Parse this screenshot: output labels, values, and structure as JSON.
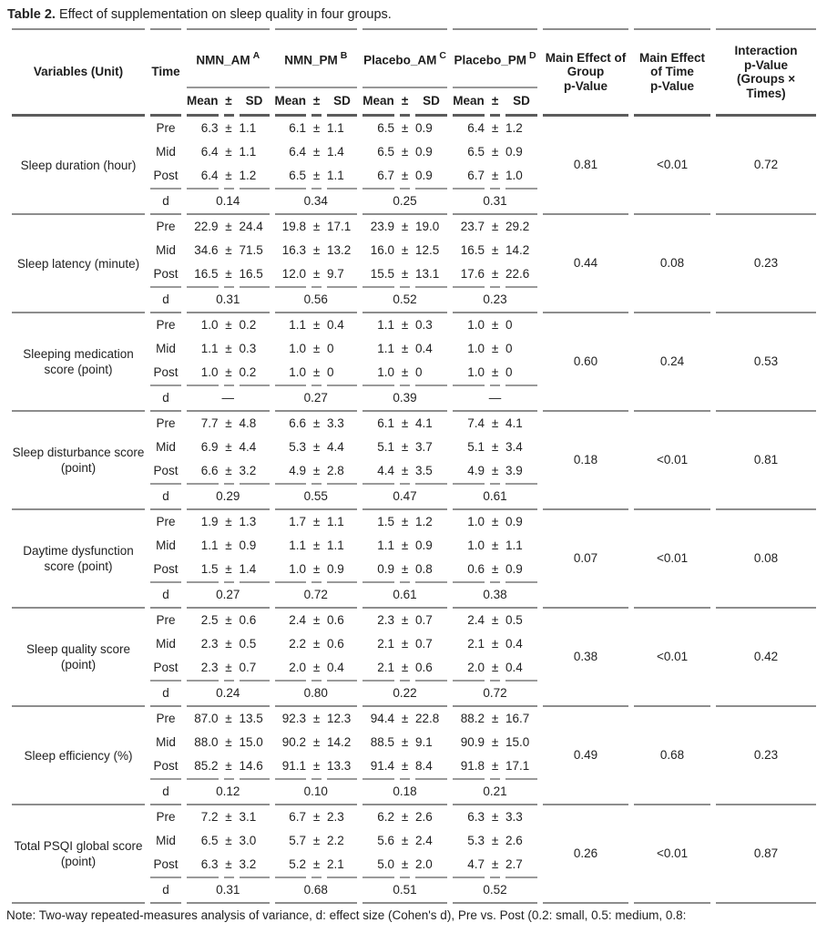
{
  "title": {
    "label": "Table 2.",
    "text": " Effect of supplementation on sleep quality in four groups."
  },
  "header": {
    "variables": "Variables (Unit)",
    "time": "Time",
    "groups": [
      {
        "name": "NMN_AM",
        "sup": "A"
      },
      {
        "name": "NMN_PM",
        "sup": "B"
      },
      {
        "name": "Placebo_AM",
        "sup": "C"
      },
      {
        "name": "Placebo_PM",
        "sup": "D"
      }
    ],
    "sub": {
      "mean": "Mean",
      "pm": "±",
      "sd": "SD"
    },
    "p_columns": [
      "Main Effect of\nGroup\np-Value",
      "Main Effect\nof Time\np-Value",
      "Interaction\np-Value\n(Groups ×\nTimes)"
    ],
    "d_label": "d"
  },
  "blocks": [
    {
      "variable": "Sleep duration (hour)",
      "rows": [
        {
          "time": "Pre",
          "cells": [
            [
              "6.3",
              "±",
              "1.1"
            ],
            [
              "6.1",
              "±",
              "1.1"
            ],
            [
              "6.5",
              "±",
              "0.9"
            ],
            [
              "6.4",
              "±",
              "1.2"
            ]
          ]
        },
        {
          "time": "Mid",
          "cells": [
            [
              "6.4",
              "±",
              "1.1"
            ],
            [
              "6.4",
              "±",
              "1.4"
            ],
            [
              "6.5",
              "±",
              "0.9"
            ],
            [
              "6.5",
              "±",
              "0.9"
            ]
          ]
        },
        {
          "time": "Post",
          "cells": [
            [
              "6.4",
              "±",
              "1.2"
            ],
            [
              "6.5",
              "±",
              "1.1"
            ],
            [
              "6.7",
              "±",
              "0.9"
            ],
            [
              "6.7",
              "±",
              "1.0"
            ]
          ]
        }
      ],
      "d": [
        "0.14",
        "0.34",
        "0.25",
        "0.31"
      ],
      "p_group": "0.81",
      "p_time": "<0.01",
      "p_interaction": "0.72"
    },
    {
      "variable": "Sleep latency (minute)",
      "rows": [
        {
          "time": "Pre",
          "cells": [
            [
              "22.9",
              "±",
              "24.4"
            ],
            [
              "19.8",
              "±",
              "17.1"
            ],
            [
              "23.9",
              "±",
              "19.0"
            ],
            [
              "23.7",
              "±",
              "29.2"
            ]
          ]
        },
        {
          "time": "Mid",
          "cells": [
            [
              "34.6",
              "±",
              "71.5"
            ],
            [
              "16.3",
              "±",
              "13.2"
            ],
            [
              "16.0",
              "±",
              "12.5"
            ],
            [
              "16.5",
              "±",
              "14.2"
            ]
          ]
        },
        {
          "time": "Post",
          "cells": [
            [
              "16.5",
              "±",
              "16.5"
            ],
            [
              "12.0",
              "±",
              "9.7"
            ],
            [
              "15.5",
              "±",
              "13.1"
            ],
            [
              "17.6",
              "±",
              "22.6"
            ]
          ]
        }
      ],
      "d": [
        "0.31",
        "0.56",
        "0.52",
        "0.23"
      ],
      "p_group": "0.44",
      "p_time": "0.08",
      "p_interaction": "0.23"
    },
    {
      "variable": "Sleeping medication score (point)",
      "rows": [
        {
          "time": "Pre",
          "cells": [
            [
              "1.0",
              "±",
              "0.2"
            ],
            [
              "1.1",
              "±",
              "0.4"
            ],
            [
              "1.1",
              "±",
              "0.3"
            ],
            [
              "1.0",
              "±",
              "0"
            ]
          ]
        },
        {
          "time": "Mid",
          "cells": [
            [
              "1.1",
              "±",
              "0.3"
            ],
            [
              "1.0",
              "±",
              "0"
            ],
            [
              "1.1",
              "±",
              "0.4"
            ],
            [
              "1.0",
              "±",
              "0"
            ]
          ]
        },
        {
          "time": "Post",
          "cells": [
            [
              "1.0",
              "±",
              "0.2"
            ],
            [
              "1.0",
              "±",
              "0"
            ],
            [
              "1.0",
              "±",
              "0"
            ],
            [
              "1.0",
              "±",
              "0"
            ]
          ]
        }
      ],
      "d": [
        "—",
        "0.27",
        "0.39",
        "—"
      ],
      "p_group": "0.60",
      "p_time": "0.24",
      "p_interaction": "0.53"
    },
    {
      "variable": "Sleep disturbance score (point)",
      "rows": [
        {
          "time": "Pre",
          "cells": [
            [
              "7.7",
              "±",
              "4.8"
            ],
            [
              "6.6",
              "±",
              "3.3"
            ],
            [
              "6.1",
              "±",
              "4.1"
            ],
            [
              "7.4",
              "±",
              "4.1"
            ]
          ]
        },
        {
          "time": "Mid",
          "cells": [
            [
              "6.9",
              "±",
              "4.4"
            ],
            [
              "5.3",
              "±",
              "4.4"
            ],
            [
              "5.1",
              "±",
              "3.7"
            ],
            [
              "5.1",
              "±",
              "3.4"
            ]
          ]
        },
        {
          "time": "Post",
          "cells": [
            [
              "6.6",
              "±",
              "3.2"
            ],
            [
              "4.9",
              "±",
              "2.8"
            ],
            [
              "4.4",
              "±",
              "3.5"
            ],
            [
              "4.9",
              "±",
              "3.9"
            ]
          ]
        }
      ],
      "d": [
        "0.29",
        "0.55",
        "0.47",
        "0.61"
      ],
      "p_group": "0.18",
      "p_time": "<0.01",
      "p_interaction": "0.81"
    },
    {
      "variable": "Daytime dysfunction score (point)",
      "rows": [
        {
          "time": "Pre",
          "cells": [
            [
              "1.9",
              "±",
              "1.3"
            ],
            [
              "1.7",
              "±",
              "1.1"
            ],
            [
              "1.5",
              "±",
              "1.2"
            ],
            [
              "1.0",
              "±",
              "0.9"
            ]
          ]
        },
        {
          "time": "Mid",
          "cells": [
            [
              "1.1",
              "±",
              "0.9"
            ],
            [
              "1.1",
              "±",
              "1.1"
            ],
            [
              "1.1",
              "±",
              "0.9"
            ],
            [
              "1.0",
              "±",
              "1.1"
            ]
          ]
        },
        {
          "time": "Post",
          "cells": [
            [
              "1.5",
              "±",
              "1.4"
            ],
            [
              "1.0",
              "±",
              "0.9"
            ],
            [
              "0.9",
              "±",
              "0.8"
            ],
            [
              "0.6",
              "±",
              "0.9"
            ]
          ]
        }
      ],
      "d": [
        "0.27",
        "0.72",
        "0.61",
        "0.38"
      ],
      "p_group": "0.07",
      "p_time": "<0.01",
      "p_interaction": "0.08"
    },
    {
      "variable": "Sleep quality score (point)",
      "rows": [
        {
          "time": "Pre",
          "cells": [
            [
              "2.5",
              "±",
              "0.6"
            ],
            [
              "2.4",
              "±",
              "0.6"
            ],
            [
              "2.3",
              "±",
              "0.7"
            ],
            [
              "2.4",
              "±",
              "0.5"
            ]
          ]
        },
        {
          "time": "Mid",
          "cells": [
            [
              "2.3",
              "±",
              "0.5"
            ],
            [
              "2.2",
              "±",
              "0.6"
            ],
            [
              "2.1",
              "±",
              "0.7"
            ],
            [
              "2.1",
              "±",
              "0.4"
            ]
          ]
        },
        {
          "time": "Post",
          "cells": [
            [
              "2.3",
              "±",
              "0.7"
            ],
            [
              "2.0",
              "±",
              "0.4"
            ],
            [
              "2.1",
              "±",
              "0.6"
            ],
            [
              "2.0",
              "±",
              "0.4"
            ]
          ]
        }
      ],
      "d": [
        "0.24",
        "0.80",
        "0.22",
        "0.72"
      ],
      "p_group": "0.38",
      "p_time": "<0.01",
      "p_interaction": "0.42"
    },
    {
      "variable": "Sleep efficiency (%)",
      "rows": [
        {
          "time": "Pre",
          "cells": [
            [
              "87.0",
              "±",
              "13.5"
            ],
            [
              "92.3",
              "±",
              "12.3"
            ],
            [
              "94.4",
              "±",
              "22.8"
            ],
            [
              "88.2",
              "±",
              "16.7"
            ]
          ]
        },
        {
          "time": "Mid",
          "cells": [
            [
              "88.0",
              "±",
              "15.0"
            ],
            [
              "90.2",
              "±",
              "14.2"
            ],
            [
              "88.5",
              "±",
              "9.1"
            ],
            [
              "90.9",
              "±",
              "15.0"
            ]
          ]
        },
        {
          "time": "Post",
          "cells": [
            [
              "85.2",
              "±",
              "14.6"
            ],
            [
              "91.1",
              "±",
              "13.3"
            ],
            [
              "91.4",
              "±",
              "8.4"
            ],
            [
              "91.8",
              "±",
              "17.1"
            ]
          ]
        }
      ],
      "d": [
        "0.12",
        "0.10",
        "0.18",
        "0.21"
      ],
      "p_group": "0.49",
      "p_time": "0.68",
      "p_interaction": "0.23"
    },
    {
      "variable": "Total PSQI global score (point)",
      "rows": [
        {
          "time": "Pre",
          "cells": [
            [
              "7.2",
              "±",
              "3.1"
            ],
            [
              "6.7",
              "±",
              "2.3"
            ],
            [
              "6.2",
              "±",
              "2.6"
            ],
            [
              "6.3",
              "±",
              "3.3"
            ]
          ]
        },
        {
          "time": "Mid",
          "cells": [
            [
              "6.5",
              "±",
              "3.0"
            ],
            [
              "5.7",
              "±",
              "2.2"
            ],
            [
              "5.6",
              "±",
              "2.4"
            ],
            [
              "5.3",
              "±",
              "2.6"
            ]
          ]
        },
        {
          "time": "Post",
          "cells": [
            [
              "6.3",
              "±",
              "3.2"
            ],
            [
              "5.2",
              "±",
              "2.1"
            ],
            [
              "5.0",
              "±",
              "2.0"
            ],
            [
              "4.7",
              "±",
              "2.7"
            ]
          ]
        }
      ],
      "d": [
        "0.31",
        "0.68",
        "0.51",
        "0.52"
      ],
      "p_group": "0.26",
      "p_time": "<0.01",
      "p_interaction": "0.87"
    }
  ],
  "note": "Note: Two-way repeated-measures analysis of variance, d: effect size (Cohen's d), Pre vs. Post (0.2: small, 0.5: medium, 0.8:"
}
